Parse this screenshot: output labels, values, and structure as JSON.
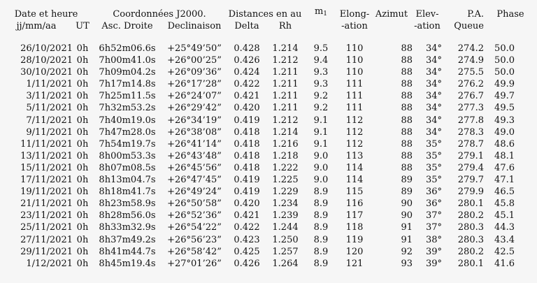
{
  "header": {
    "group_date": "Date et heure",
    "group_coords": "Coordonnées J2000.",
    "group_dist": "Distances en au",
    "mag_label": "m",
    "mag_sub": "1",
    "elong_1": "Elong-",
    "azimut": "Azimut",
    "elev_1": "Elev-",
    "pa_1": "P.A.",
    "phase": "Phase",
    "date_fmt": "jj/mm/aa",
    "ut": "UT",
    "ra": "Asc. Droite",
    "dec": "Declinaison",
    "delta": "Delta",
    "rh": "Rh",
    "elong_2": "-ation",
    "elev_2": "-ation",
    "pa_2": "Queue"
  },
  "rows": [
    {
      "date": "26/10/2021",
      "ut": "0h",
      "ra": "6h52m06.6s",
      "dec": "+25°49’50”",
      "delta": "0.428",
      "rh": "1.214",
      "mag": "9.5",
      "elong": "110",
      "az": "88",
      "elev": "34°",
      "pa": "274.2",
      "phase": "50.0"
    },
    {
      "date": "28/10/2021",
      "ut": "0h",
      "ra": "7h00m41.0s",
      "dec": "+26°00’25”",
      "delta": "0.426",
      "rh": "1.212",
      "mag": "9.4",
      "elong": "110",
      "az": "88",
      "elev": "34°",
      "pa": "274.9",
      "phase": "50.0"
    },
    {
      "date": "30/10/2021",
      "ut": "0h",
      "ra": "7h09m04.2s",
      "dec": "+26°09’36”",
      "delta": "0.424",
      "rh": "1.211",
      "mag": "9.3",
      "elong": "110",
      "az": "88",
      "elev": "34°",
      "pa": "275.5",
      "phase": "50.0"
    },
    {
      "date": "1/11/2021",
      "ut": "0h",
      "ra": "7h17m14.8s",
      "dec": "+26°17’28”",
      "delta": "0.422",
      "rh": "1.211",
      "mag": "9.3",
      "elong": "111",
      "az": "88",
      "elev": "34°",
      "pa": "276.2",
      "phase": "49.9"
    },
    {
      "date": "3/11/2021",
      "ut": "0h",
      "ra": "7h25m11.5s",
      "dec": "+26°24’07”",
      "delta": "0.421",
      "rh": "1.211",
      "mag": "9.2",
      "elong": "111",
      "az": "88",
      "elev": "34°",
      "pa": "276.7",
      "phase": "49.7"
    },
    {
      "date": "5/11/2021",
      "ut": "0h",
      "ra": "7h32m53.2s",
      "dec": "+26°29’42”",
      "delta": "0.420",
      "rh": "1.211",
      "mag": "9.2",
      "elong": "111",
      "az": "88",
      "elev": "34°",
      "pa": "277.3",
      "phase": "49.5"
    },
    {
      "date": "7/11/2021",
      "ut": "0h",
      "ra": "7h40m19.0s",
      "dec": "+26°34’19”",
      "delta": "0.419",
      "rh": "1.212",
      "mag": "9.1",
      "elong": "112",
      "az": "88",
      "elev": "34°",
      "pa": "277.8",
      "phase": "49.3"
    },
    {
      "date": "9/11/2021",
      "ut": "0h",
      "ra": "7h47m28.0s",
      "dec": "+26°38’08”",
      "delta": "0.418",
      "rh": "1.214",
      "mag": "9.1",
      "elong": "112",
      "az": "88",
      "elev": "34°",
      "pa": "278.3",
      "phase": "49.0"
    },
    {
      "date": "11/11/2021",
      "ut": "0h",
      "ra": "7h54m19.7s",
      "dec": "+26°41’14”",
      "delta": "0.418",
      "rh": "1.216",
      "mag": "9.1",
      "elong": "112",
      "az": "88",
      "elev": "35°",
      "pa": "278.7",
      "phase": "48.6"
    },
    {
      "date": "13/11/2021",
      "ut": "0h",
      "ra": "8h00m53.3s",
      "dec": "+26°43’48”",
      "delta": "0.418",
      "rh": "1.218",
      "mag": "9.0",
      "elong": "113",
      "az": "88",
      "elev": "35°",
      "pa": "279.1",
      "phase": "48.1"
    },
    {
      "date": "15/11/2021",
      "ut": "0h",
      "ra": "8h07m08.5s",
      "dec": "+26°45’56”",
      "delta": "0.418",
      "rh": "1.222",
      "mag": "9.0",
      "elong": "114",
      "az": "88",
      "elev": "35°",
      "pa": "279.4",
      "phase": "47.6"
    },
    {
      "date": "17/11/2021",
      "ut": "0h",
      "ra": "8h13m04.7s",
      "dec": "+26°47’45”",
      "delta": "0.419",
      "rh": "1.225",
      "mag": "9.0",
      "elong": "114",
      "az": "89",
      "elev": "35°",
      "pa": "279.7",
      "phase": "47.1"
    },
    {
      "date": "19/11/2021",
      "ut": "0h",
      "ra": "8h18m41.7s",
      "dec": "+26°49’24”",
      "delta": "0.419",
      "rh": "1.229",
      "mag": "8.9",
      "elong": "115",
      "az": "89",
      "elev": "36°",
      "pa": "279.9",
      "phase": "46.5"
    },
    {
      "date": "21/11/2021",
      "ut": "0h",
      "ra": "8h23m58.9s",
      "dec": "+26°50’58”",
      "delta": "0.420",
      "rh": "1.234",
      "mag": "8.9",
      "elong": "116",
      "az": "90",
      "elev": "36°",
      "pa": "280.1",
      "phase": "45.8"
    },
    {
      "date": "23/11/2021",
      "ut": "0h",
      "ra": "8h28m56.0s",
      "dec": "+26°52’36”",
      "delta": "0.421",
      "rh": "1.239",
      "mag": "8.9",
      "elong": "117",
      "az": "90",
      "elev": "37°",
      "pa": "280.2",
      "phase": "45.1"
    },
    {
      "date": "25/11/2021",
      "ut": "0h",
      "ra": "8h33m32.9s",
      "dec": "+26°54’22”",
      "delta": "0.422",
      "rh": "1.244",
      "mag": "8.9",
      "elong": "118",
      "az": "91",
      "elev": "37°",
      "pa": "280.3",
      "phase": "44.3"
    },
    {
      "date": "27/11/2021",
      "ut": "0h",
      "ra": "8h37m49.2s",
      "dec": "+26°56’23”",
      "delta": "0.423",
      "rh": "1.250",
      "mag": "8.9",
      "elong": "119",
      "az": "91",
      "elev": "38°",
      "pa": "280.3",
      "phase": "43.4"
    },
    {
      "date": "29/11/2021",
      "ut": "0h",
      "ra": "8h41m44.7s",
      "dec": "+26°58’42”",
      "delta": "0.425",
      "rh": "1.257",
      "mag": "8.9",
      "elong": "120",
      "az": "92",
      "elev": "39°",
      "pa": "280.2",
      "phase": "42.5"
    },
    {
      "date": "1/12/2021",
      "ut": "0h",
      "ra": "8h45m19.4s",
      "dec": "+27°01’26”",
      "delta": "0.426",
      "rh": "1.264",
      "mag": "8.9",
      "elong": "121",
      "az": "93",
      "elev": "39°",
      "pa": "280.1",
      "phase": "41.6"
    }
  ]
}
